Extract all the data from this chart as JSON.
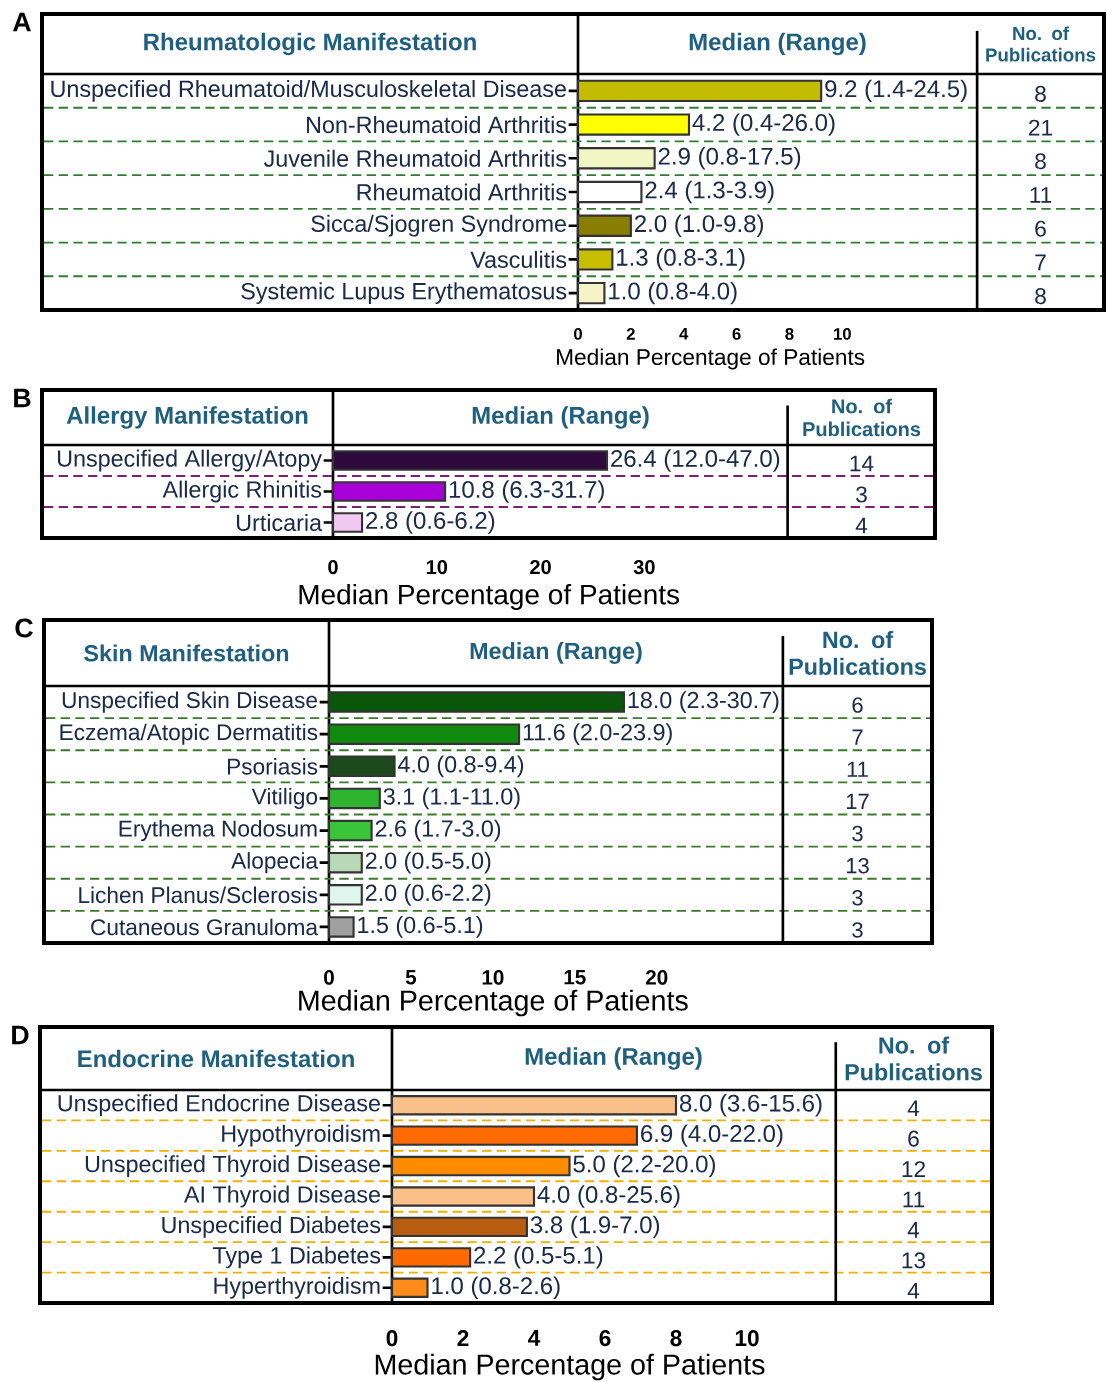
{
  "chart_data": [
    {
      "type": "bar",
      "orientation": "horizontal",
      "title": "Median (Range)",
      "ylabel": "Rheumatologic Manifestation",
      "xlabel": "Median Percentage of Patients",
      "categories": [
        "Unspecified Rheumatoid/Musculoskeletal Disease",
        "Non-Rheumatoid Arthritis",
        "Juvenile Rheumatoid Arthritis",
        "Rheumatoid Arthritis",
        "Sicca/Sjogren Syndrome",
        "Vasculitis",
        "Systemic Lupus Erythematosus"
      ],
      "values": [
        9.2,
        4.2,
        2.9,
        2.4,
        2.0,
        1.3,
        1.0
      ],
      "value_labels": [
        "9.2 (1.4-24.5)",
        "4.2 (0.4-26.0)",
        "2.9 (0.8-17.5)",
        "2.4 (1.3-3.9)",
        "2.0 (1.0-9.8)",
        "1.3 (0.8-3.1)",
        "1.0 (0.8-4.0)"
      ],
      "colors": [
        "#c4bc00",
        "#ffff00",
        "#f2f6c4",
        "#ffffff",
        "#8a7e00",
        "#c8be00",
        "#f4f4c8"
      ],
      "annotations": [
        "A",
        "No. of Publications",
        "8",
        "21",
        "8",
        "11",
        "6",
        "7",
        "8"
      ],
      "ref_lines": [
        {
          "axis": "x",
          "value": 15.1
        }
      ],
      "xlim": [
        0,
        19.9
      ],
      "xticks": [
        0,
        2,
        4,
        6,
        8,
        10
      ],
      "grid": "y"
    },
    {
      "type": "bar",
      "orientation": "horizontal",
      "title": "Median (Range)",
      "ylabel": "Allergy Manifestation",
      "xlabel": "Median Percentage of Patients",
      "categories": [
        "Unspecified Allergy/Atopy",
        "Allergic Rhinitis",
        "Urticaria"
      ],
      "values": [
        26.4,
        10.8,
        2.8
      ],
      "value_labels": [
        "26.4 (12.0-47.0)",
        "10.8 (6.3-31.7)",
        "2.8 (0.6-6.2)"
      ],
      "colors": [
        "#2e0a3c",
        "#a800d8",
        "#f0c8f0"
      ],
      "annotations": [
        "B",
        "No. of Publications",
        "14",
        "3",
        "4"
      ],
      "ref_lines": [
        {
          "axis": "x",
          "value": 43.8
        }
      ],
      "xlim": [
        0,
        58.0
      ],
      "xticks": [
        0,
        10,
        20,
        30
      ],
      "grid": "y"
    },
    {
      "type": "bar",
      "orientation": "horizontal",
      "title": "Median (Range)",
      "ylabel": "Skin Manifestation",
      "xlabel": "Median Percentage of Patients",
      "categories": [
        "Unspecified Skin Disease",
        "Eczema/Atopic Dermatitis",
        "Psoriasis",
        "Vitiligo",
        "Erythema Nodosum",
        "Alopecia",
        "Lichen Planus/Sclerosis",
        "Cutaneous Granuloma"
      ],
      "values": [
        18.0,
        11.6,
        4.0,
        3.1,
        2.6,
        2.0,
        2.0,
        1.5
      ],
      "value_labels": [
        "18.0 (2.3-30.7)",
        "11.6 (2.0-23.9)",
        "4.0 (0.8-9.4)",
        "3.1 (1.1-11.0)",
        "2.6 (1.7-3.0)",
        "2.0 (0.5-5.0)",
        "2.0 (0.6-2.2)",
        "1.5 (0.6-5.1)"
      ],
      "colors": [
        "#0a560a",
        "#0f8a0f",
        "#1c4a1c",
        "#2eb42e",
        "#3ac43a",
        "#b8d8b8",
        "#e2f6f0",
        "#a0a0a0"
      ],
      "annotations": [
        "C",
        "No. of Publications",
        "6",
        "7",
        "11",
        "17",
        "3",
        "13",
        "3",
        "3"
      ],
      "ref_lines": [
        {
          "axis": "x",
          "value": 27.7
        }
      ],
      "xlim": [
        0,
        36.8
      ],
      "xticks": [
        0,
        5,
        10,
        15,
        20
      ],
      "grid": "y"
    },
    {
      "type": "bar",
      "orientation": "horizontal",
      "title": "Median (Range)",
      "ylabel": "Endocrine Manifestation",
      "xlabel": "Median Percentage of Patients",
      "categories": [
        "Unspecified Endocrine Disease",
        "Hypothyroidism",
        "Unspecified Thyroid Disease",
        "AI Thyroid Disease",
        "Unspecified Diabetes",
        "Type 1 Diabetes",
        "Hyperthyroidism"
      ],
      "values": [
        8.0,
        6.9,
        5.0,
        4.0,
        3.8,
        2.2,
        1.0
      ],
      "value_labels": [
        "8.0 (3.6-15.6)",
        "6.9 (4.0-22.0)",
        "5.0 (2.2-20.0)",
        "4.0 (0.8-25.6)",
        "3.8 (1.9-7.0)",
        "2.2 (0.5-5.1)",
        "1.0 (0.8-2.6)"
      ],
      "colors": [
        "#f9c08a",
        "#ff6a00",
        "#ff8c00",
        "#fbc088",
        "#b85c10",
        "#ff6a00",
        "#ff8c1a"
      ],
      "annotations": [
        "D",
        "No. of Publications",
        "4",
        "6",
        "12",
        "11",
        "4",
        "13",
        "4"
      ],
      "ref_lines": [
        {
          "axis": "x",
          "value": 12.5
        }
      ],
      "xlim": [
        0,
        16.9
      ],
      "xticks": [
        0,
        2,
        4,
        6,
        8,
        10
      ],
      "grid": "y"
    }
  ]
}
